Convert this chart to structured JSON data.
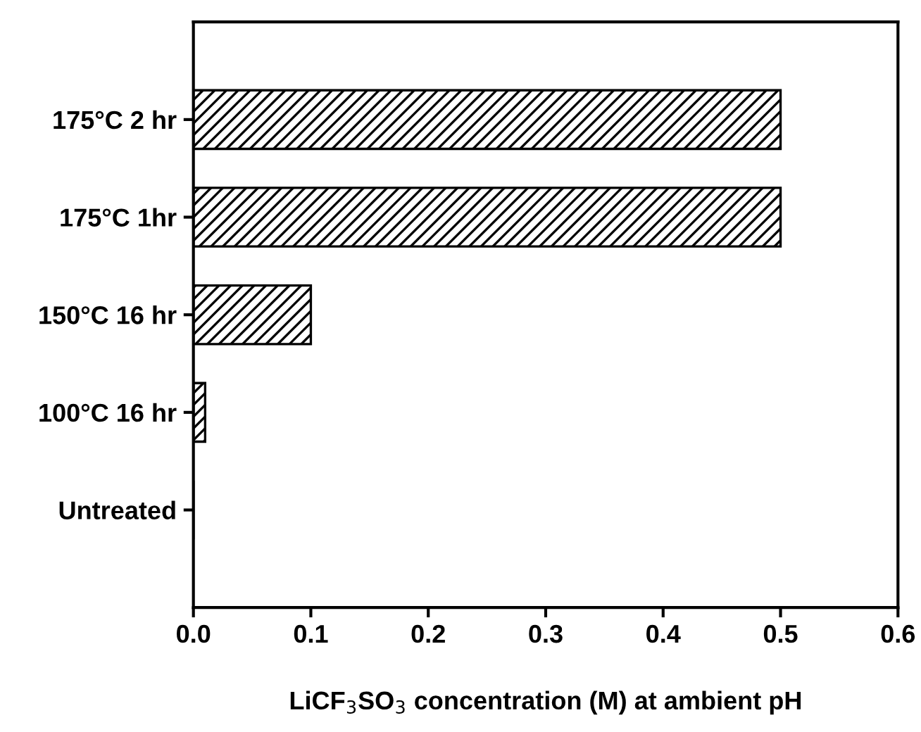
{
  "chart_data": {
    "type": "bar",
    "orientation": "horizontal",
    "categories": [
      "175°C 2 hr",
      "175°C 1hr",
      "150°C 16 hr",
      "100°C 16 hr",
      "Untreated"
    ],
    "values": [
      0.5,
      0.5,
      0.1,
      0.01,
      0
    ],
    "color": "#000000",
    "xlabel": "LiCF$_{3}$SO$_{3}$ concentration (M) at ambient pH",
    "xlim": [
      0,
      0.6
    ],
    "xticks": [
      {
        "value": 0,
        "label": "0.0"
      },
      0.1,
      0.2,
      0.3,
      0.4,
      0.5,
      0.6
    ],
    "grid": false,
    "legend": false
  }
}
